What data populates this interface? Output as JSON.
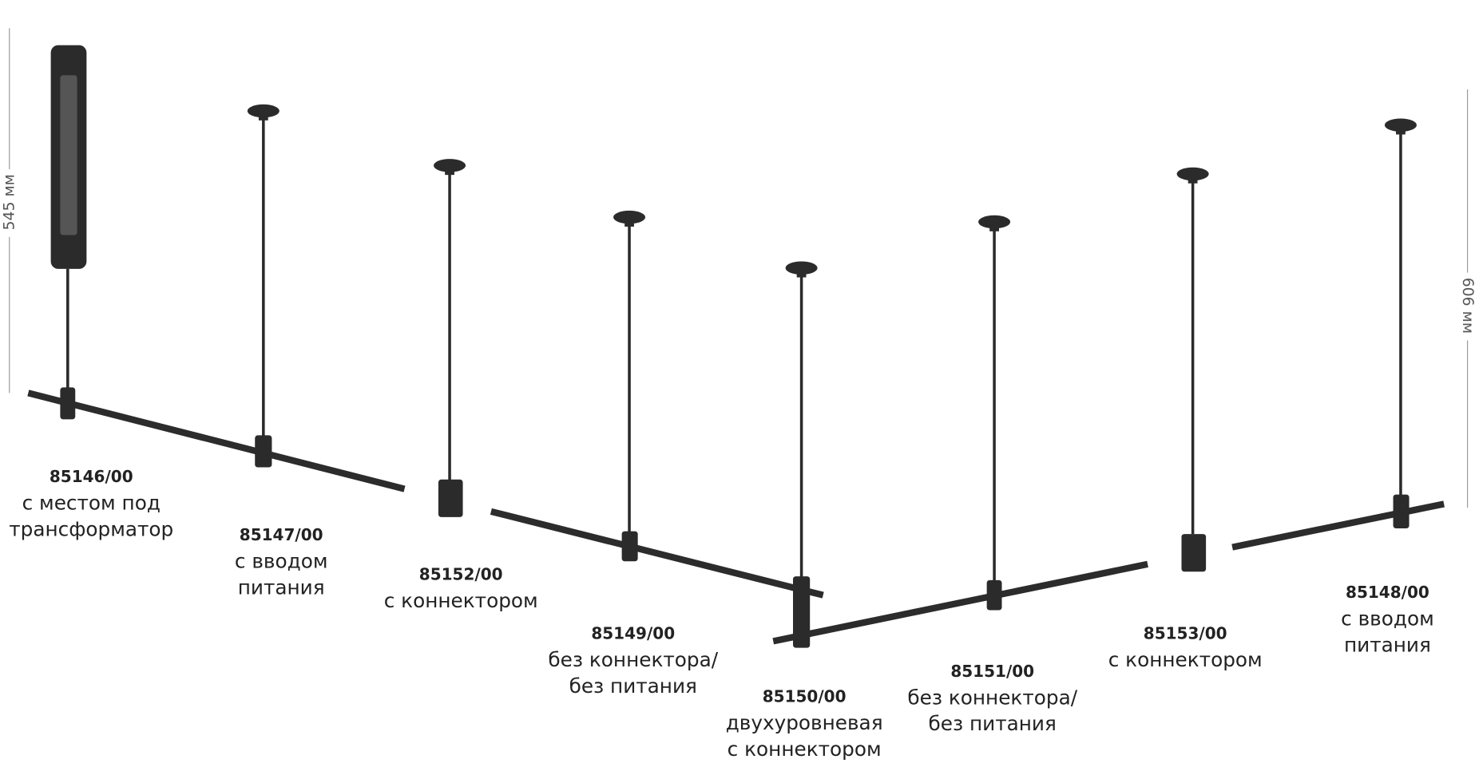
{
  "products": [
    {
      "code": "85146/00",
      "description": [
        "с местом под",
        "трансформатор"
      ]
    },
    {
      "code": "85147/00",
      "description": [
        "с вводом",
        "питания"
      ]
    },
    {
      "code": "85152/00",
      "description": [
        "с коннектором"
      ]
    },
    {
      "code": "85149/00",
      "description": [
        "без коннектора/",
        "без питания"
      ]
    },
    {
      "code": "85150/00",
      "description": [
        "двухуровневая",
        "с коннектором"
      ]
    },
    {
      "code": "85151/00",
      "description": [
        "без коннектора/",
        "без питания"
      ]
    },
    {
      "code": "85153/00",
      "description": [
        "с коннектором"
      ]
    },
    {
      "code": "85148/00",
      "description": [
        "с вводом",
        "питания"
      ]
    }
  ],
  "dimensions": [
    {
      "label": "545 мм"
    },
    {
      "label": "606 мм"
    }
  ]
}
